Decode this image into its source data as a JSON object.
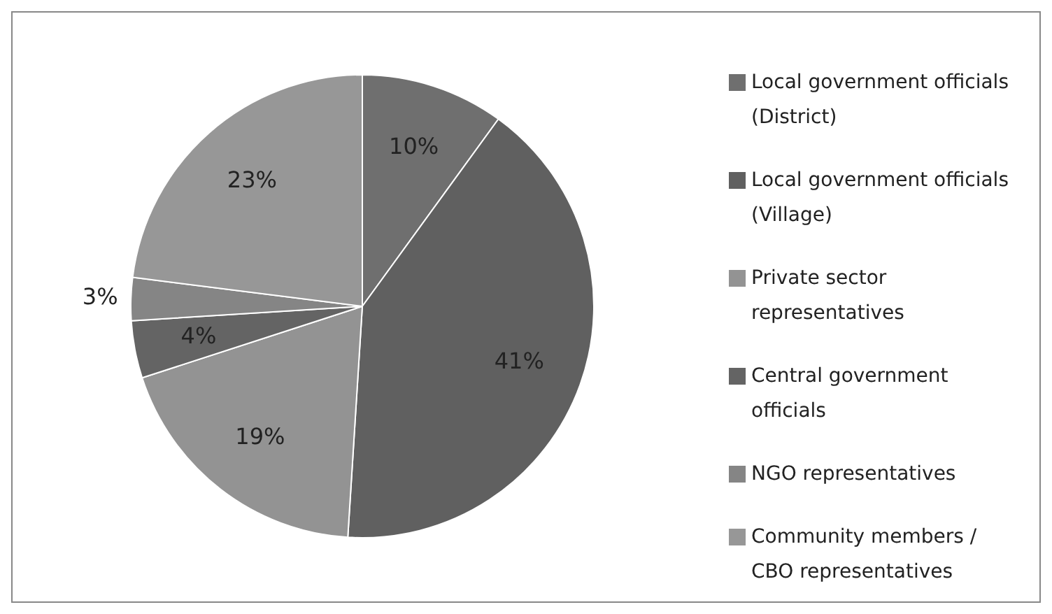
{
  "chart_data": {
    "type": "pie",
    "categories": [
      "Local government officials (District)",
      "Local government officials (Village)",
      "Private sector representatives",
      "Central government officials",
      "NGO representatives",
      "Community members / CBO representatives"
    ],
    "values": [
      10,
      41,
      19,
      4,
      3,
      23
    ],
    "colors": [
      "#6f6f6f",
      "#606060",
      "#939393",
      "#646464",
      "#858585",
      "#979797"
    ],
    "value_labels": [
      "10%",
      "41%",
      "19%",
      "4%",
      "3%",
      "23%"
    ],
    "legend": "right"
  }
}
